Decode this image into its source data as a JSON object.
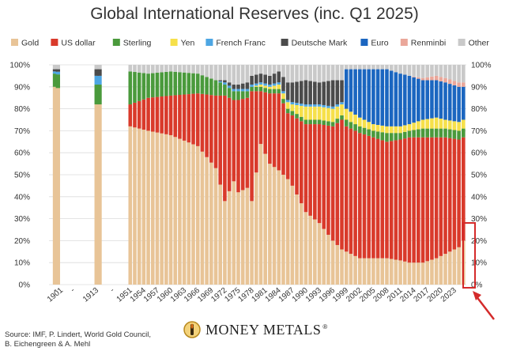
{
  "title": "Global International Reserves (inc. Q1 2025)",
  "source": "Source: IMF, P. Lindert, World Gold Council, B. Eichengreen & A. Mehl",
  "brand": "MONEY METALS",
  "brand_mark": "®",
  "chart_data": {
    "type": "bar",
    "stacked": true,
    "title": "Global International Reserves (inc. Q1 2025)",
    "ylim": [
      0,
      100
    ],
    "yticks": [
      "0%",
      "10%",
      "20%",
      "30%",
      "40%",
      "50%",
      "60%",
      "70%",
      "80%",
      "90%",
      "100%"
    ],
    "grid": true,
    "legend_position": "top",
    "tick_labels": [
      {
        "label": "-",
        "x": 1899
      },
      {
        "label": "1901",
        "x": 1901
      },
      {
        "label": "-",
        "x": 1905
      },
      {
        "label": "1913",
        "x": 1913
      },
      {
        "label": "-",
        "x": 1947
      },
      {
        "label": "1951",
        "x": 1951
      },
      {
        "label": "1954",
        "x": 1954
      },
      {
        "label": "1957",
        "x": 1957
      },
      {
        "label": "1960",
        "x": 1960
      },
      {
        "label": "1963",
        "x": 1963
      },
      {
        "label": "1966",
        "x": 1966
      },
      {
        "label": "1969",
        "x": 1969
      },
      {
        "label": "1972",
        "x": 1972
      },
      {
        "label": "1975",
        "x": 1975
      },
      {
        "label": "1978",
        "x": 1978
      },
      {
        "label": "1981",
        "x": 1981
      },
      {
        "label": "1984",
        "x": 1984
      },
      {
        "label": "1987",
        "x": 1987
      },
      {
        "label": "1990",
        "x": 1990
      },
      {
        "label": "1993",
        "x": 1993
      },
      {
        "label": "1996",
        "x": 1996
      },
      {
        "label": "1999",
        "x": 1999
      },
      {
        "label": "2002",
        "x": 2002
      },
      {
        "label": "2005",
        "x": 2005
      },
      {
        "label": "2008",
        "x": 2008
      },
      {
        "label": "2011",
        "x": 2011
      },
      {
        "label": "2014",
        "x": 2014
      },
      {
        "label": "2017",
        "x": 2017
      },
      {
        "label": "2020",
        "x": 2020
      },
      {
        "label": "2023",
        "x": 2023
      }
    ],
    "series": [
      {
        "name": "Gold",
        "color": "#e8c497"
      },
      {
        "name": "US dollar",
        "color": "#d93a2b"
      },
      {
        "name": "Sterling",
        "color": "#4a9a3c"
      },
      {
        "name": "Yen",
        "color": "#f6e04a"
      },
      {
        "name": "French Franc",
        "color": "#4da6e3"
      },
      {
        "name": "Deutsche Mark",
        "color": "#4b4b4b"
      },
      {
        "name": "Euro",
        "color": "#1b66c0"
      },
      {
        "name": "Renminbi",
        "color": "#eaa79a"
      },
      {
        "name": "Other",
        "color": "#c9c9c9"
      }
    ],
    "anchors": [
      {
        "year": 1899,
        "v": [
          90,
          0,
          6,
          0,
          1,
          1,
          0,
          0,
          2
        ]
      },
      {
        "year": 1913,
        "v": [
          82,
          0,
          9,
          0,
          4,
          3,
          0,
          0,
          2
        ]
      },
      {
        "year": 1951,
        "v": [
          72,
          10,
          15,
          0,
          0,
          0,
          0,
          0,
          3
        ]
      },
      {
        "year": 1955,
        "v": [
          70,
          15,
          11,
          0,
          0,
          0,
          0,
          0,
          4
        ]
      },
      {
        "year": 1960,
        "v": [
          68,
          18,
          11,
          0,
          0,
          0,
          0,
          0,
          3
        ]
      },
      {
        "year": 1966,
        "v": [
          63,
          24,
          9,
          0,
          0,
          0,
          0,
          0,
          4
        ]
      },
      {
        "year": 1970,
        "v": [
          53,
          33,
          7,
          0,
          0,
          0,
          0,
          0,
          7
        ]
      },
      {
        "year": 1972,
        "v": [
          38,
          48,
          5,
          0,
          1,
          1,
          0,
          0,
          7
        ]
      },
      {
        "year": 1974,
        "v": [
          47,
          37,
          4,
          0,
          1,
          2,
          0,
          0,
          9
        ]
      },
      {
        "year": 1975,
        "v": [
          42,
          42,
          4,
          0,
          1,
          2,
          0,
          0,
          9
        ]
      },
      {
        "year": 1977,
        "v": [
          44,
          41,
          3,
          0,
          1,
          3,
          0,
          0,
          8
        ]
      },
      {
        "year": 1978,
        "v": [
          38,
          50,
          2,
          0,
          1,
          4,
          0,
          0,
          5
        ]
      },
      {
        "year": 1980,
        "v": [
          64,
          24,
          2,
          1,
          1,
          4,
          0,
          0,
          4
        ]
      },
      {
        "year": 1982,
        "v": [
          55,
          32,
          2,
          1,
          1,
          4,
          0,
          0,
          5
        ]
      },
      {
        "year": 1984,
        "v": [
          52,
          35,
          2,
          2,
          1,
          5,
          0,
          0,
          3
        ]
      },
      {
        "year": 1986,
        "v": [
          48,
          30,
          2,
          3,
          1,
          8,
          0,
          0,
          8
        ]
      },
      {
        "year": 1987,
        "v": [
          45,
          32,
          2,
          3,
          1,
          9,
          0,
          0,
          8
        ]
      },
      {
        "year": 1990,
        "v": [
          33,
          40,
          2,
          6,
          1,
          11,
          0,
          0,
          7
        ]
      },
      {
        "year": 1993,
        "v": [
          28,
          45,
          2,
          6,
          1,
          10,
          0,
          0,
          8
        ]
      },
      {
        "year": 1996,
        "v": [
          20,
          52,
          2,
          6,
          1,
          12,
          0,
          0,
          7
        ]
      },
      {
        "year": 1998,
        "v": [
          16,
          59,
          2,
          5,
          1,
          10,
          0,
          0,
          7
        ]
      },
      {
        "year": 1999,
        "v": [
          15,
          57,
          3,
          5,
          0,
          0,
          18,
          0,
          2
        ]
      },
      {
        "year": 2002,
        "v": [
          12,
          57,
          3,
          4,
          0,
          0,
          22,
          0,
          2
        ]
      },
      {
        "year": 2005,
        "v": [
          12,
          55,
          3,
          3,
          0,
          0,
          25,
          0,
          2
        ]
      },
      {
        "year": 2008,
        "v": [
          12,
          53,
          4,
          3,
          0,
          0,
          26,
          0,
          2
        ]
      },
      {
        "year": 2011,
        "v": [
          11,
          55,
          3,
          3,
          0,
          0,
          24,
          0,
          4
        ]
      },
      {
        "year": 2013,
        "v": [
          10,
          57,
          3,
          3,
          0,
          0,
          22,
          0,
          5
        ]
      },
      {
        "year": 2016,
        "v": [
          10,
          57,
          4,
          4,
          0,
          0,
          18,
          1,
          6
        ]
      },
      {
        "year": 2019,
        "v": [
          12,
          55,
          4,
          5,
          0,
          0,
          17,
          2,
          5
        ]
      },
      {
        "year": 2021,
        "v": [
          14,
          53,
          4,
          4,
          0,
          0,
          17,
          2,
          6
        ]
      },
      {
        "year": 2024,
        "v": [
          17,
          49,
          4,
          4,
          0,
          0,
          16,
          2,
          8
        ]
      },
      {
        "year": 2025,
        "v": [
          20,
          47,
          4,
          4,
          0,
          0,
          15,
          2,
          8
        ]
      }
    ],
    "bar_years": [
      1899,
      1900,
      1913,
      1914,
      1951,
      1952,
      1953,
      1954,
      1955,
      1956,
      1957,
      1958,
      1959,
      1960,
      1961,
      1962,
      1963,
      1964,
      1965,
      1966,
      1967,
      1968,
      1969,
      1970,
      1971,
      1972,
      1973,
      1974,
      1975,
      1976,
      1977,
      1978,
      1979,
      1980,
      1981,
      1982,
      1983,
      1984,
      1985,
      1986,
      1987,
      1988,
      1989,
      1990,
      1991,
      1992,
      1993,
      1994,
      1995,
      1996,
      1997,
      1998,
      1999,
      2000,
      2001,
      2002,
      2003,
      2004,
      2005,
      2006,
      2007,
      2008,
      2009,
      2010,
      2011,
      2012,
      2013,
      2014,
      2015,
      2016,
      2017,
      2018,
      2019,
      2020,
      2021,
      2022,
      2023,
      2024,
      2025
    ]
  }
}
